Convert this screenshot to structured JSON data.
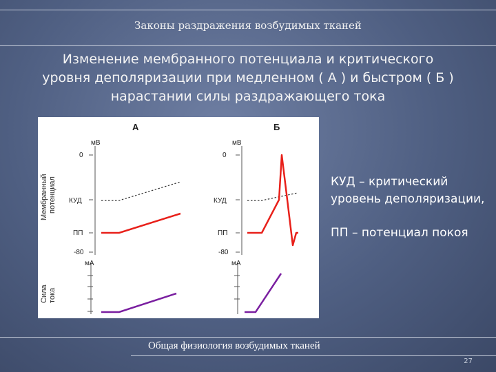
{
  "header": {
    "title": "Законы раздражения возбудимых тканей"
  },
  "slide": {
    "title_line1": "Изменение мембранного потенциала и критического",
    "title_line2": "уровня деполяризации при медленном ( А ) и быстром ( Б )",
    "title_line3": "нарастании силы раздражающего тока"
  },
  "figure": {
    "panel_a": "А",
    "panel_b": "Б",
    "ylabel_membrane_1": "Мембранный",
    "ylabel_membrane_2": "потенциал",
    "ylabel_current_1": "Сила",
    "ylabel_current_2": "тока",
    "unit_mv": "мВ",
    "unit_ma": "мА",
    "tick_0": "0",
    "tick_kud": "КУД",
    "tick_pp": "ПП",
    "tick_minus80": "-80",
    "colors": {
      "potential": "#e8201a",
      "threshold": "#333333",
      "current": "#7a1fa0"
    }
  },
  "legend": {
    "kud_line1": "КУД – критический",
    "kud_line2": "уровень деполяризации,",
    "pp": "ПП – потенциал покоя"
  },
  "footer": {
    "text": "Общая физиология возбудимых тканей",
    "page": "27"
  }
}
